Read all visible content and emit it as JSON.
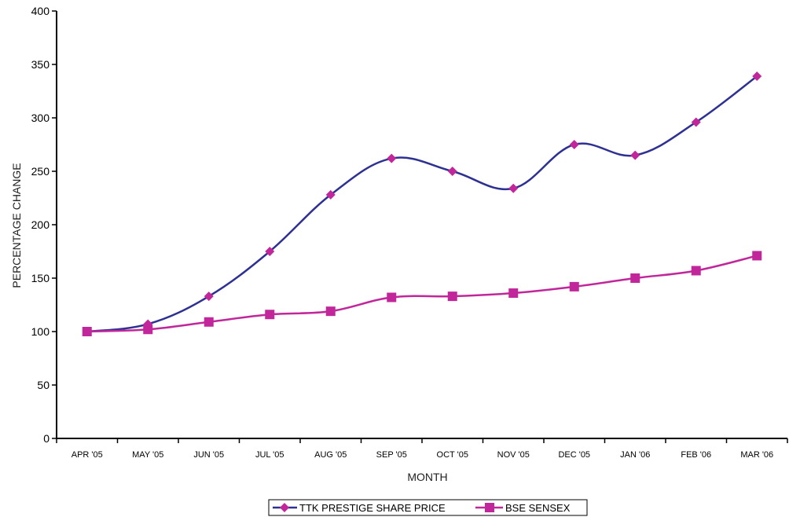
{
  "chart_data": {
    "type": "line",
    "title": "",
    "xlabel": "MONTH",
    "ylabel": "PERCENTAGE CHANGE",
    "categories": [
      "APR '05",
      "MAY '05",
      "JUN '05",
      "JUL '05",
      "AUG '05",
      "SEP '05",
      "OCT '05",
      "NOV '05",
      "DEC '05",
      "JAN '06",
      "FEB '06",
      "MAR '06"
    ],
    "yticks": [
      "0",
      "50",
      "100",
      "150",
      "200",
      "250",
      "300",
      "350",
      "400"
    ],
    "ylim": [
      0,
      400
    ],
    "grid": false,
    "legend_position": "bottom-center",
    "series": [
      {
        "name": "TTK PRESTIGE SHARE PRICE",
        "marker": "diamond",
        "line_color": "#2e3192",
        "marker_color": "#c1279a",
        "values": [
          100,
          107,
          133,
          175,
          228,
          262,
          250,
          234,
          275,
          265,
          296,
          339
        ]
      },
      {
        "name": "BSE SENSEX",
        "marker": "square",
        "line_color": "#c1279a",
        "marker_color": "#c1279a",
        "values": [
          100,
          102,
          109,
          116,
          119,
          132,
          133,
          136,
          142,
          150,
          157,
          171
        ]
      }
    ]
  }
}
